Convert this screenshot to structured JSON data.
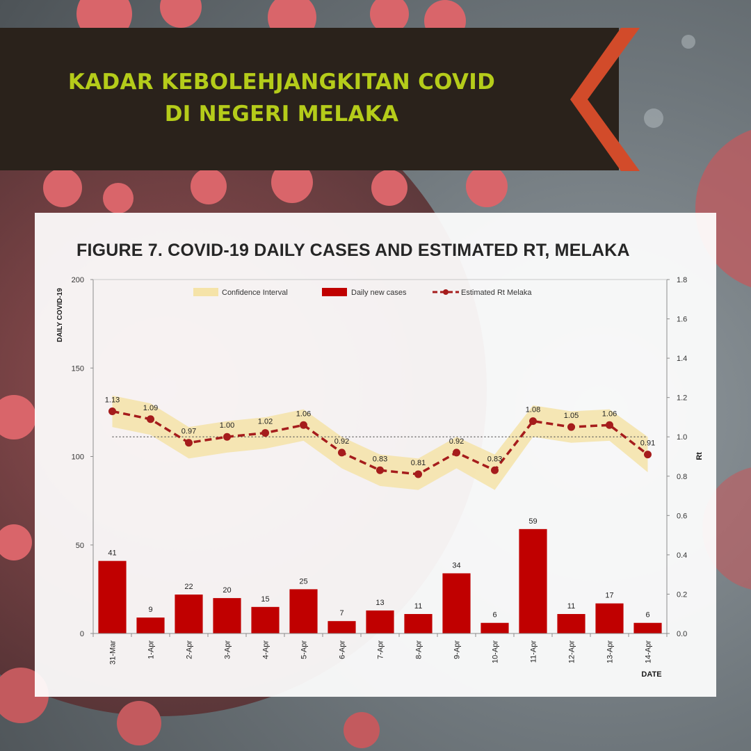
{
  "banner": {
    "title_line1": "KADAR KEBOLEHJANGKITAN COVID",
    "title_line2": "DI NEGERI MELAKA"
  },
  "colors": {
    "banner_bg": "#2a221b",
    "title": "#b5cc1a",
    "chevron": "#d24b2a",
    "bar": "#c00000",
    "rt_line": "#a51c1c",
    "confidence": "#f5e3a8"
  },
  "chart_data": {
    "type": "bar",
    "title": "FIGURE 7. COVID-19 DAILY CASES AND ESTIMATED RT, MELAKA",
    "xlabel": "DATE",
    "ylabel": "DAILY COVID-19",
    "y2label": "Rt",
    "categories": [
      "31-Mar",
      "1-Apr",
      "2-Apr",
      "3-Apr",
      "4-Apr",
      "5-Apr",
      "6-Apr",
      "7-Apr",
      "8-Apr",
      "9-Apr",
      "10-Apr",
      "11-Apr",
      "12-Apr",
      "13-Apr",
      "14-Apr"
    ],
    "ylim": [
      0,
      200
    ],
    "yticks": [
      0,
      50,
      100,
      150,
      200
    ],
    "y2lim": [
      0,
      1.8
    ],
    "y2ticks": [
      "0.0",
      "0.2",
      "0.4",
      "0.6",
      "0.8",
      "1.0",
      "1.2",
      "1.4",
      "1.6",
      "1.8"
    ],
    "reference_rt": 1.0,
    "legend": {
      "placement": "top",
      "items": [
        "Confidence Interval",
        "Daily new cases",
        "Estimated Rt Melaka"
      ]
    },
    "series": [
      {
        "name": "Daily new cases",
        "type": "bar",
        "axis": "left",
        "values": [
          41,
          9,
          22,
          20,
          15,
          25,
          7,
          13,
          11,
          34,
          6,
          59,
          11,
          17,
          6
        ],
        "labels": [
          "41",
          "9",
          "22",
          "20",
          "15",
          "25",
          "7",
          "13",
          "11",
          "34",
          "6",
          "59",
          "11",
          "17",
          "6"
        ]
      },
      {
        "name": "Estimated Rt Melaka",
        "type": "line",
        "axis": "right",
        "values": [
          1.13,
          1.09,
          0.97,
          1.0,
          1.02,
          1.06,
          0.92,
          0.83,
          0.81,
          0.92,
          0.83,
          1.08,
          1.05,
          1.06,
          0.91
        ],
        "labels": [
          "1.13",
          "1.09",
          "0.97",
          "1.00",
          "1.02",
          "1.06",
          "0.92",
          "0.83",
          "0.81",
          "0.92",
          "0.83",
          "1.08",
          "1.05",
          "1.06",
          "0.91"
        ]
      },
      {
        "name": "Confidence Interval",
        "type": "band",
        "axis": "right",
        "lower": [
          1.05,
          1.01,
          0.89,
          0.92,
          0.94,
          0.98,
          0.84,
          0.75,
          0.73,
          0.84,
          0.73,
          1.0,
          0.97,
          0.98,
          0.82
        ],
        "upper": [
          1.21,
          1.17,
          1.05,
          1.08,
          1.1,
          1.14,
          1.0,
          0.91,
          0.89,
          1.0,
          0.91,
          1.16,
          1.13,
          1.14,
          1.0
        ]
      }
    ]
  }
}
